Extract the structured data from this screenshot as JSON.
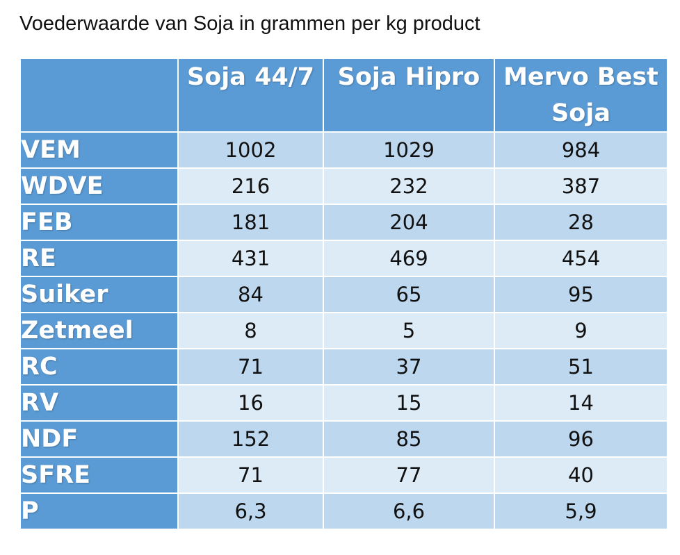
{
  "caption": "Voederwaarde van Soja in grammen per kg product",
  "table": {
    "corner": "",
    "headers": [
      "Soja 44/7",
      "Soja Hipro",
      "Mervo Best Soja"
    ],
    "rows": [
      {
        "label": "VEM",
        "values": [
          "1002",
          "1029",
          "984"
        ]
      },
      {
        "label": "WDVE",
        "values": [
          "216",
          "232",
          "387"
        ]
      },
      {
        "label": "FEB",
        "values": [
          "181",
          "204",
          "28"
        ]
      },
      {
        "label": "RE",
        "values": [
          "431",
          "469",
          "454"
        ]
      },
      {
        "label": "Suiker",
        "values": [
          "84",
          "65",
          "95"
        ]
      },
      {
        "label": "Zetmeel",
        "values": [
          "8",
          "5",
          "9"
        ]
      },
      {
        "label": "RC",
        "values": [
          "71",
          "37",
          "51"
        ]
      },
      {
        "label": "RV",
        "values": [
          "16",
          "15",
          "14"
        ]
      },
      {
        "label": "NDF",
        "values": [
          "152",
          "85",
          "96"
        ]
      },
      {
        "label": "SFRE",
        "values": [
          "71",
          "77",
          "40"
        ]
      },
      {
        "label": "P",
        "values": [
          "6,3",
          "6,6",
          "5,9"
        ]
      }
    ]
  },
  "colors": {
    "header_bg": "#5b9bd5",
    "row_dark": "#bdd7ee",
    "row_light": "#ddebf7",
    "header_text": "#ffffff"
  }
}
